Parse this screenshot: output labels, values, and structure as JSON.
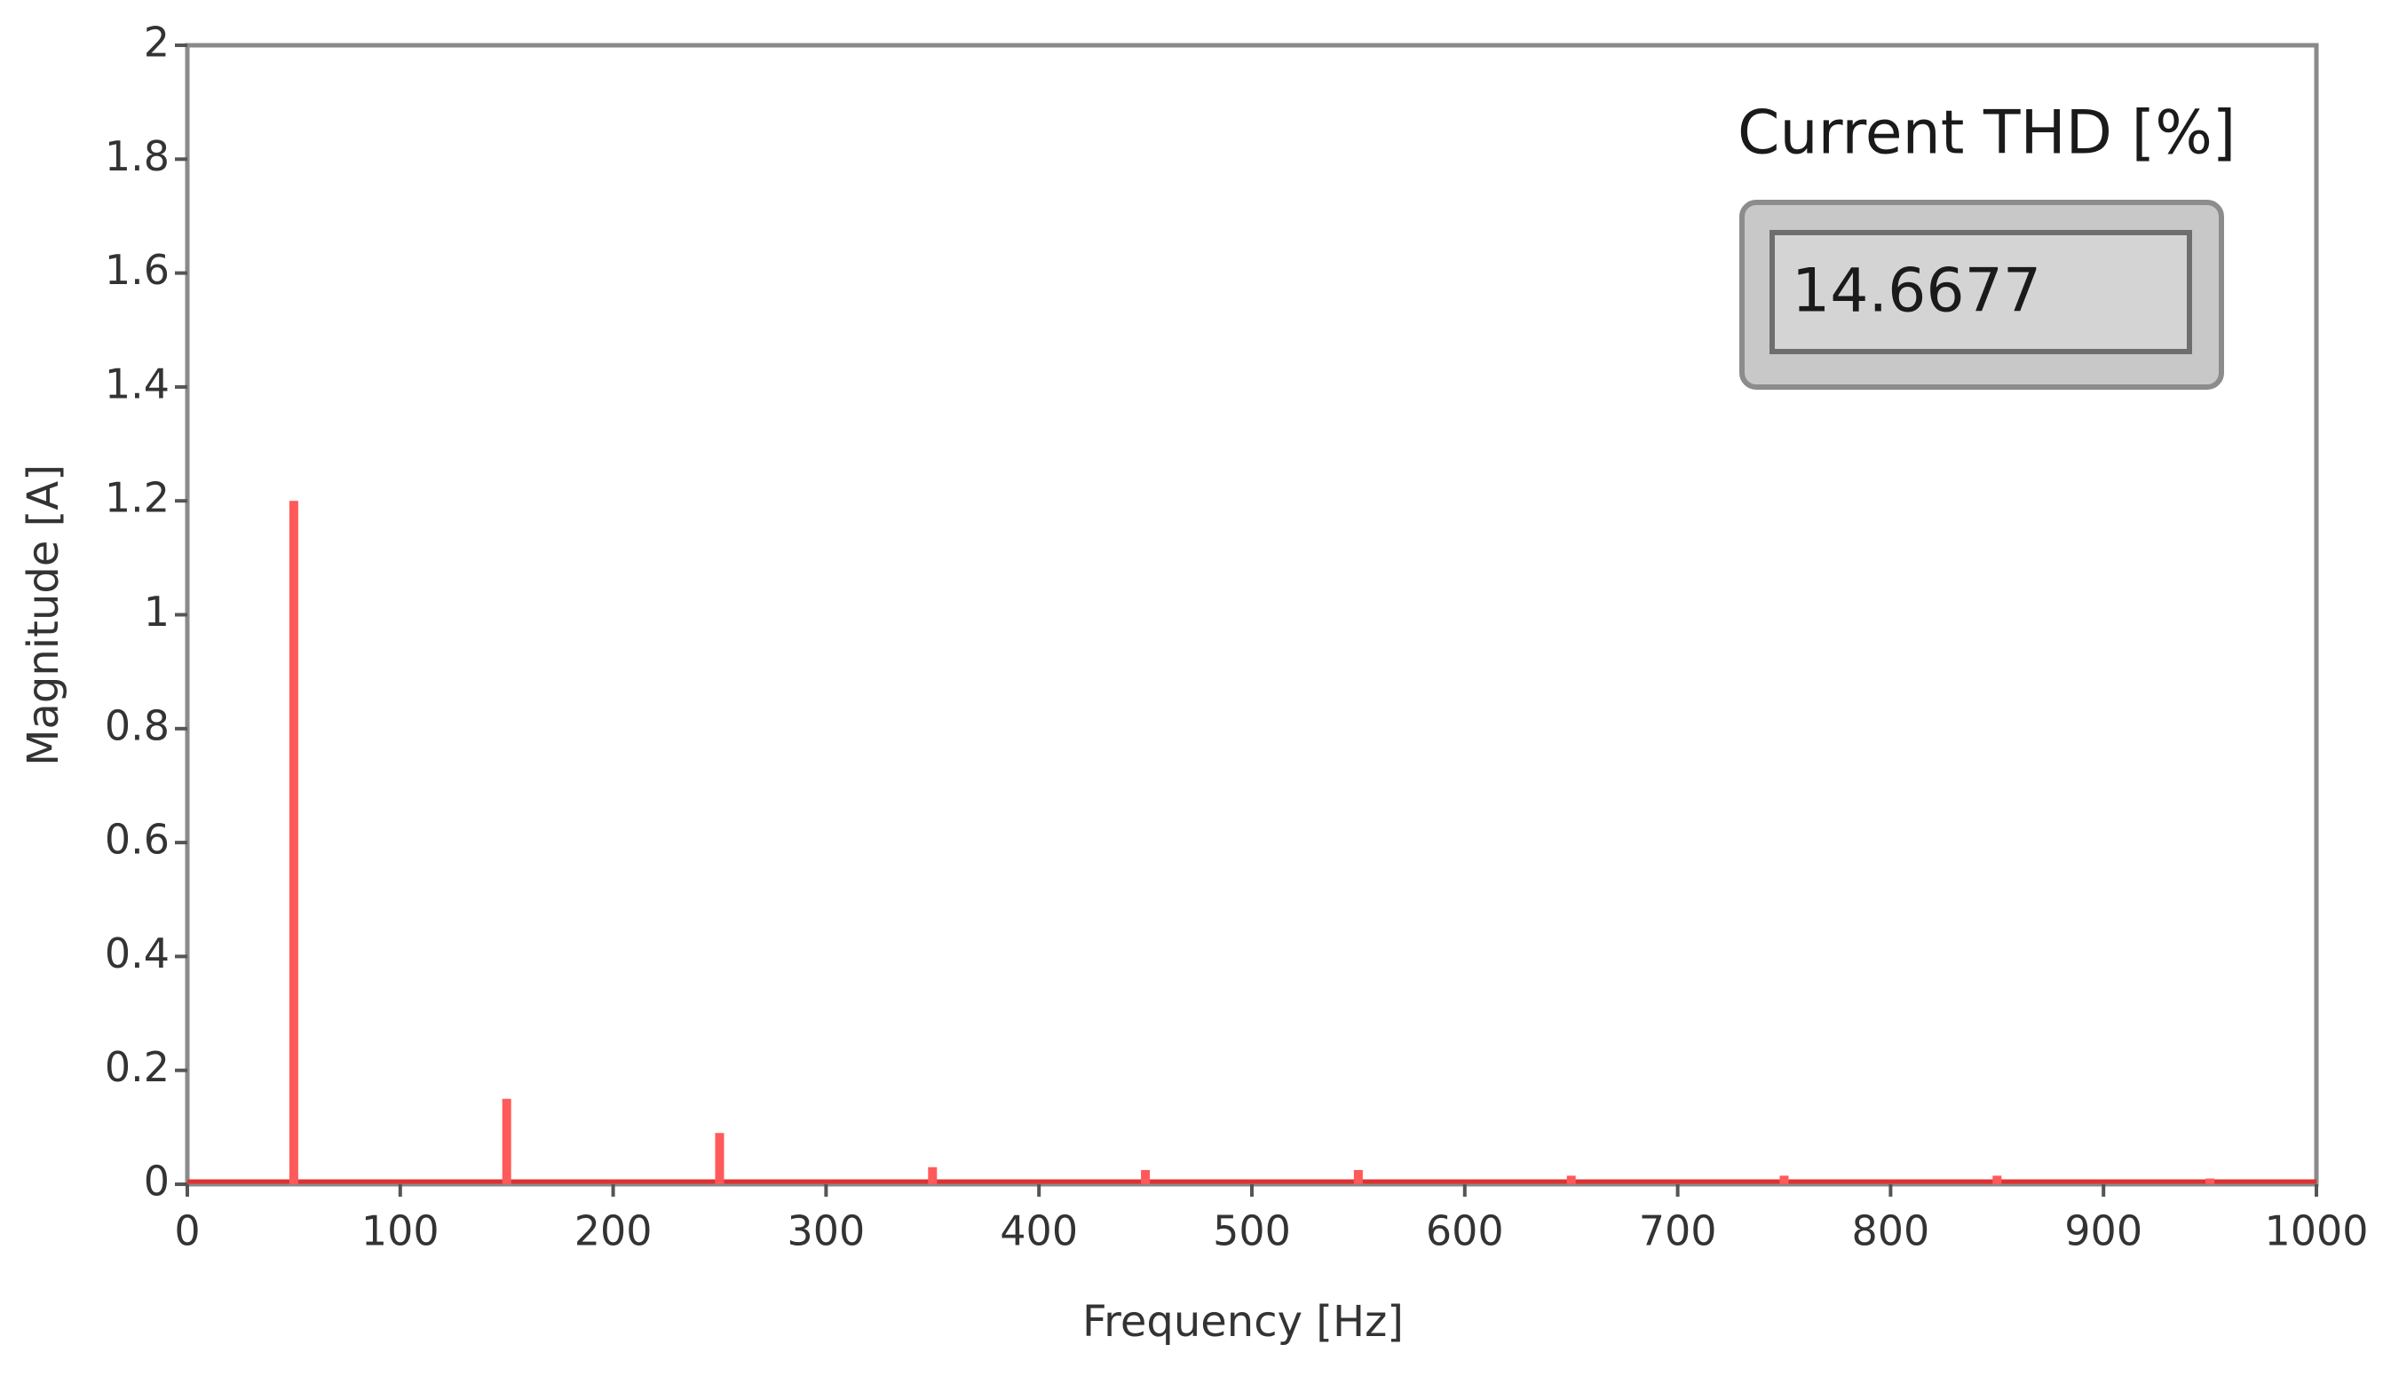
{
  "chart_data": {
    "type": "bar",
    "x_label": "Frequency [Hz]",
    "y_label": "Magnitude [A]",
    "x": [
      50,
      150,
      250,
      350,
      450,
      550,
      650,
      750,
      850,
      950
    ],
    "values": [
      1.2,
      0.15,
      0.09,
      0.03,
      0.025,
      0.025,
      0.015,
      0.015,
      0.015,
      0.01
    ],
    "color": "#ff5a5a",
    "xlim": [
      0,
      1000
    ],
    "xticks": [
      0,
      100,
      200,
      300,
      400,
      500,
      600,
      700,
      800,
      900,
      1000
    ],
    "ylim": [
      0,
      2
    ],
    "yticks": [
      0,
      0.2,
      0.4,
      0.6,
      0.8,
      1,
      1.2,
      1.4,
      1.6,
      1.8,
      2
    ],
    "grid": false,
    "indicator": {
      "label": "Current THD [%]",
      "value": 14.6677
    }
  }
}
